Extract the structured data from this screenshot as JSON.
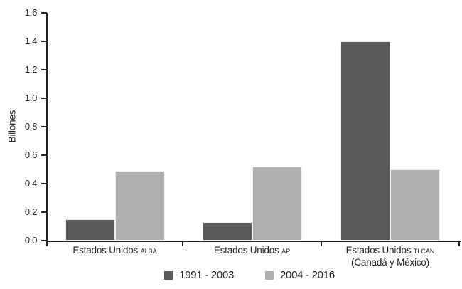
{
  "chart_data": {
    "type": "bar",
    "title": "",
    "ylabel": "Billones",
    "xlabel": "",
    "ylim": [
      0,
      1.6
    ],
    "ytick_step": 0.2,
    "grid": false,
    "legend_position": "bottom",
    "axis_color": "#231F20",
    "bar_border_color": "#f1f1f1",
    "categories": [
      {
        "main": "Estados Unidos",
        "tag": "ALBA",
        "sub": ""
      },
      {
        "main": "Estados Unidos",
        "tag": "AP",
        "sub": ""
      },
      {
        "main": "Estados Unidos",
        "tag": "TLCAN",
        "sub": "(Canadá y México)"
      }
    ],
    "series": [
      {
        "name": "1991 - 2003",
        "color": "#58595B",
        "values": [
          0.15,
          0.13,
          1.4
        ]
      },
      {
        "name": "2004 - 2016",
        "color": "#AEB0AF",
        "values": [
          0.49,
          0.52,
          0.5
        ]
      }
    ]
  }
}
